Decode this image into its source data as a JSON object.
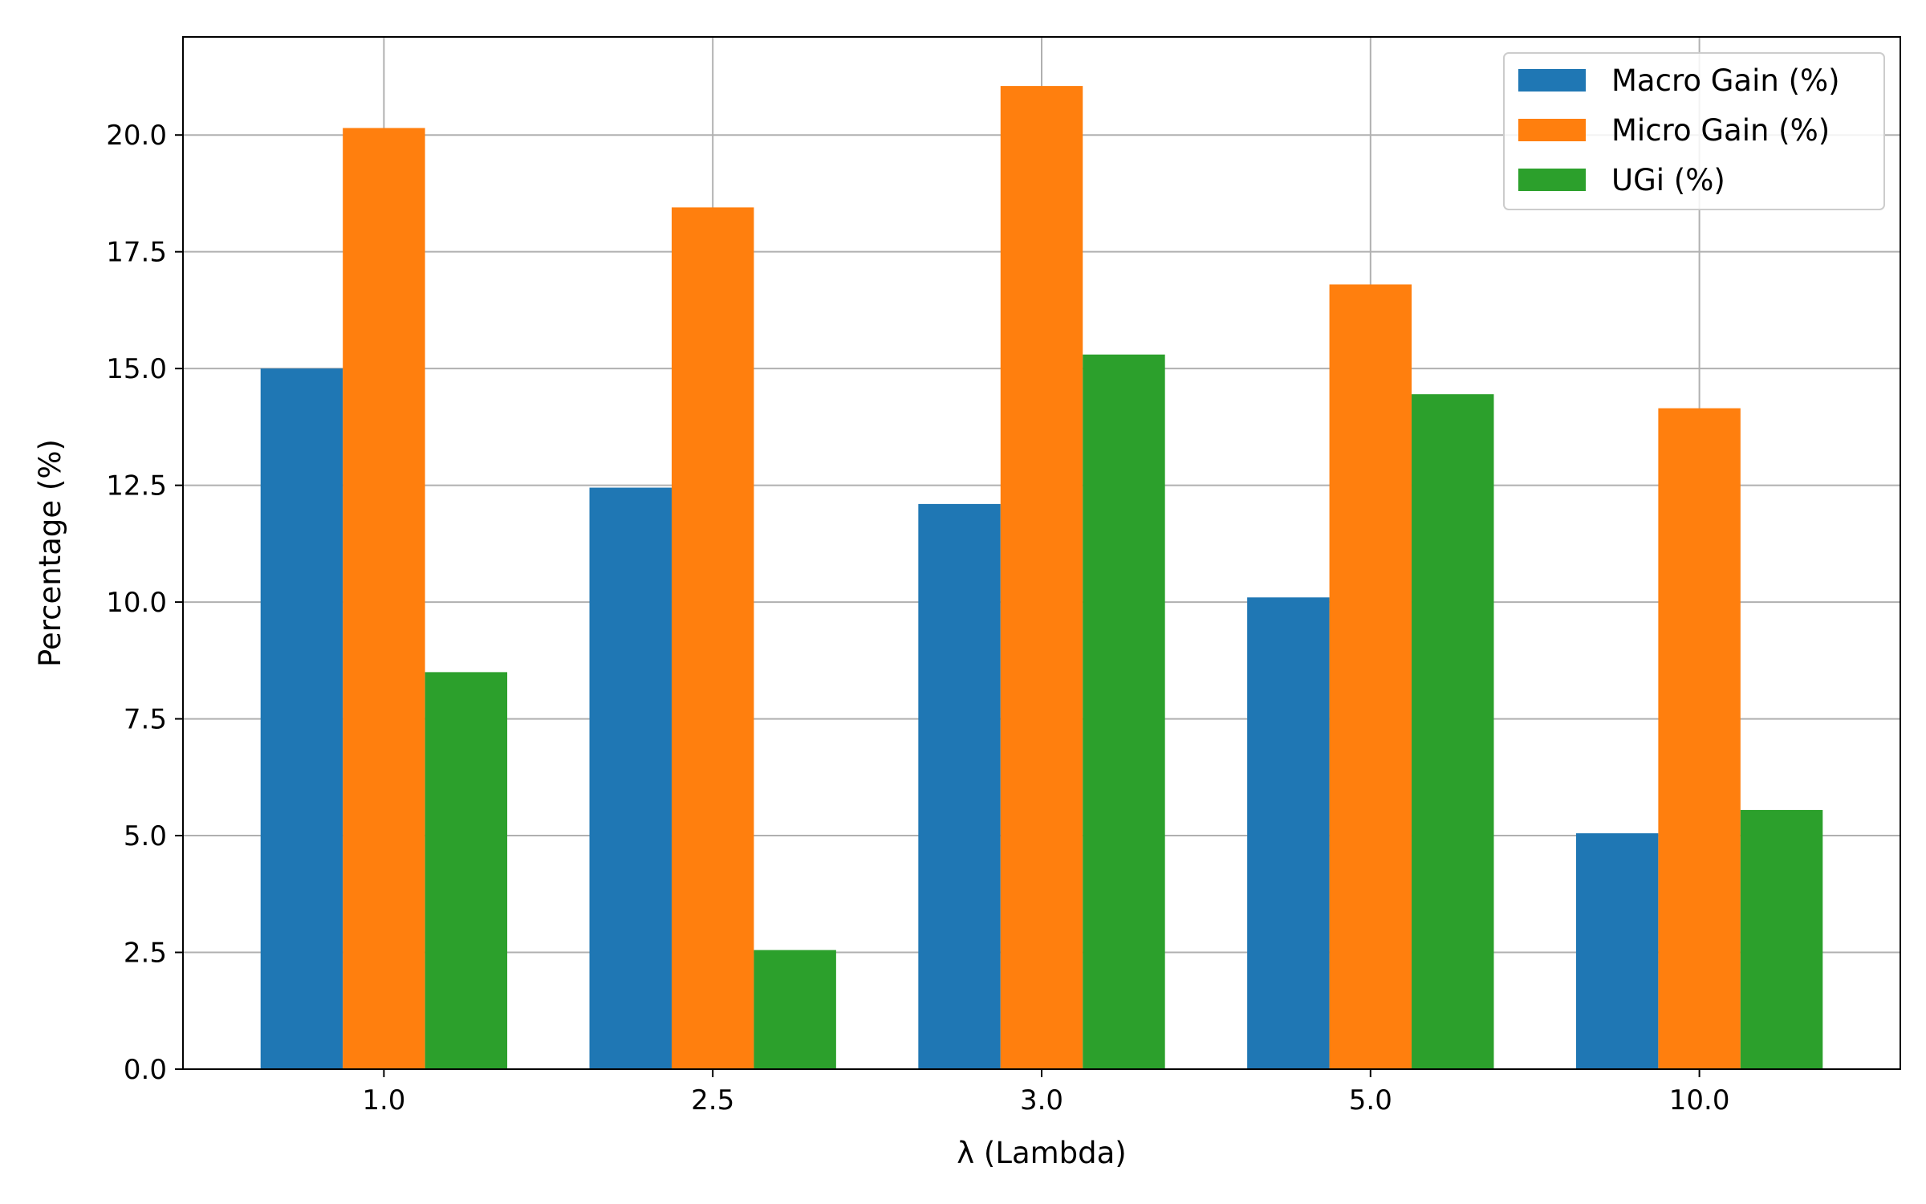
{
  "chart_data": {
    "type": "bar",
    "title": "",
    "xlabel": "λ (Lambda)",
    "ylabel": "Percentage (%)",
    "categories": [
      "1.0",
      "2.5",
      "3.0",
      "5.0",
      "10.0"
    ],
    "series": [
      {
        "name": "Macro Gain (%)",
        "color": "#1f77b4",
        "values": [
          15.0,
          12.45,
          12.1,
          10.1,
          5.05
        ]
      },
      {
        "name": "Micro Gain (%)",
        "color": "#ff7f0e",
        "values": [
          20.15,
          18.45,
          21.05,
          16.8,
          14.15
        ]
      },
      {
        "name": "UGi (%)",
        "color": "#2ca02c",
        "values": [
          8.5,
          2.55,
          15.3,
          14.45,
          5.55
        ]
      }
    ],
    "ylim": [
      0,
      22.1
    ],
    "yticks": [
      "0.0",
      "2.5",
      "5.0",
      "7.5",
      "10.0",
      "12.5",
      "15.0",
      "17.5",
      "20.0"
    ],
    "grid": true,
    "legend_position": "top-right"
  }
}
